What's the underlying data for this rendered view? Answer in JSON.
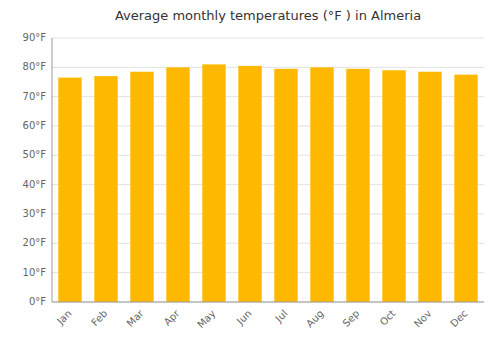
{
  "chart_data": {
    "type": "bar",
    "title": "Average monthly temperatures (°F ) in Almeria",
    "categories": [
      "Jan",
      "Feb",
      "Mar",
      "Apr",
      "May",
      "Jun",
      "Jul",
      "Aug",
      "Sep",
      "Oct",
      "Nov",
      "Dec"
    ],
    "values": [
      76.5,
      77.0,
      78.5,
      80.0,
      81.0,
      80.5,
      79.5,
      80.0,
      79.5,
      79.0,
      78.5,
      77.5
    ],
    "color": "#FFB800",
    "ylim": [
      0,
      90
    ],
    "yticks": [
      {
        "value": 0,
        "label": "0°F"
      },
      {
        "value": 10,
        "label": "10°F"
      },
      {
        "value": 20,
        "label": "20°F"
      },
      {
        "value": 30,
        "label": "30°F"
      },
      {
        "value": 40,
        "label": "40°F"
      },
      {
        "value": 50,
        "label": "50°F"
      },
      {
        "value": 60,
        "label": "60°F"
      },
      {
        "value": 70,
        "label": "70°F"
      },
      {
        "value": 80,
        "label": "80°F"
      },
      {
        "value": 90,
        "label": "90°F"
      }
    ],
    "grid": true
  }
}
